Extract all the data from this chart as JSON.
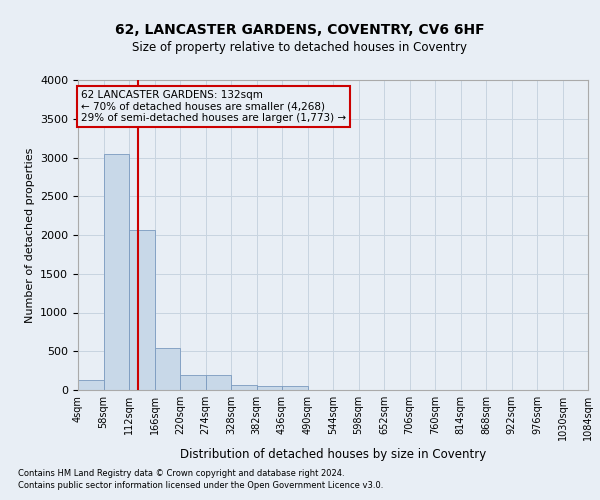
{
  "title1": "62, LANCASTER GARDENS, COVENTRY, CV6 6HF",
  "title2": "Size of property relative to detached houses in Coventry",
  "xlabel": "Distribution of detached houses by size in Coventry",
  "ylabel": "Number of detached properties",
  "footnote1": "Contains HM Land Registry data © Crown copyright and database right 2024.",
  "footnote2": "Contains public sector information licensed under the Open Government Licence v3.0.",
  "property_size": 132,
  "annotation_line1": "62 LANCASTER GARDENS: 132sqm",
  "annotation_line2": "← 70% of detached houses are smaller (4,268)",
  "annotation_line3": "29% of semi-detached houses are larger (1,773) →",
  "bin_edges": [
    4,
    58,
    112,
    166,
    220,
    274,
    328,
    382,
    436,
    490,
    544,
    598,
    652,
    706,
    760,
    814,
    868,
    922,
    976,
    1030,
    1084
  ],
  "bar_heights": [
    130,
    3040,
    2070,
    540,
    195,
    195,
    70,
    50,
    50,
    5,
    0,
    0,
    0,
    0,
    0,
    0,
    0,
    0,
    0,
    0
  ],
  "bar_color": "#c8d8e8",
  "bar_edge_color": "#7a9abf",
  "red_line_color": "#cc0000",
  "annotation_box_color": "#cc0000",
  "grid_color": "#c8d4e0",
  "background_color": "#e8eef5",
  "ylim": [
    0,
    4000
  ],
  "yticks": [
    0,
    500,
    1000,
    1500,
    2000,
    2500,
    3000,
    3500,
    4000
  ]
}
